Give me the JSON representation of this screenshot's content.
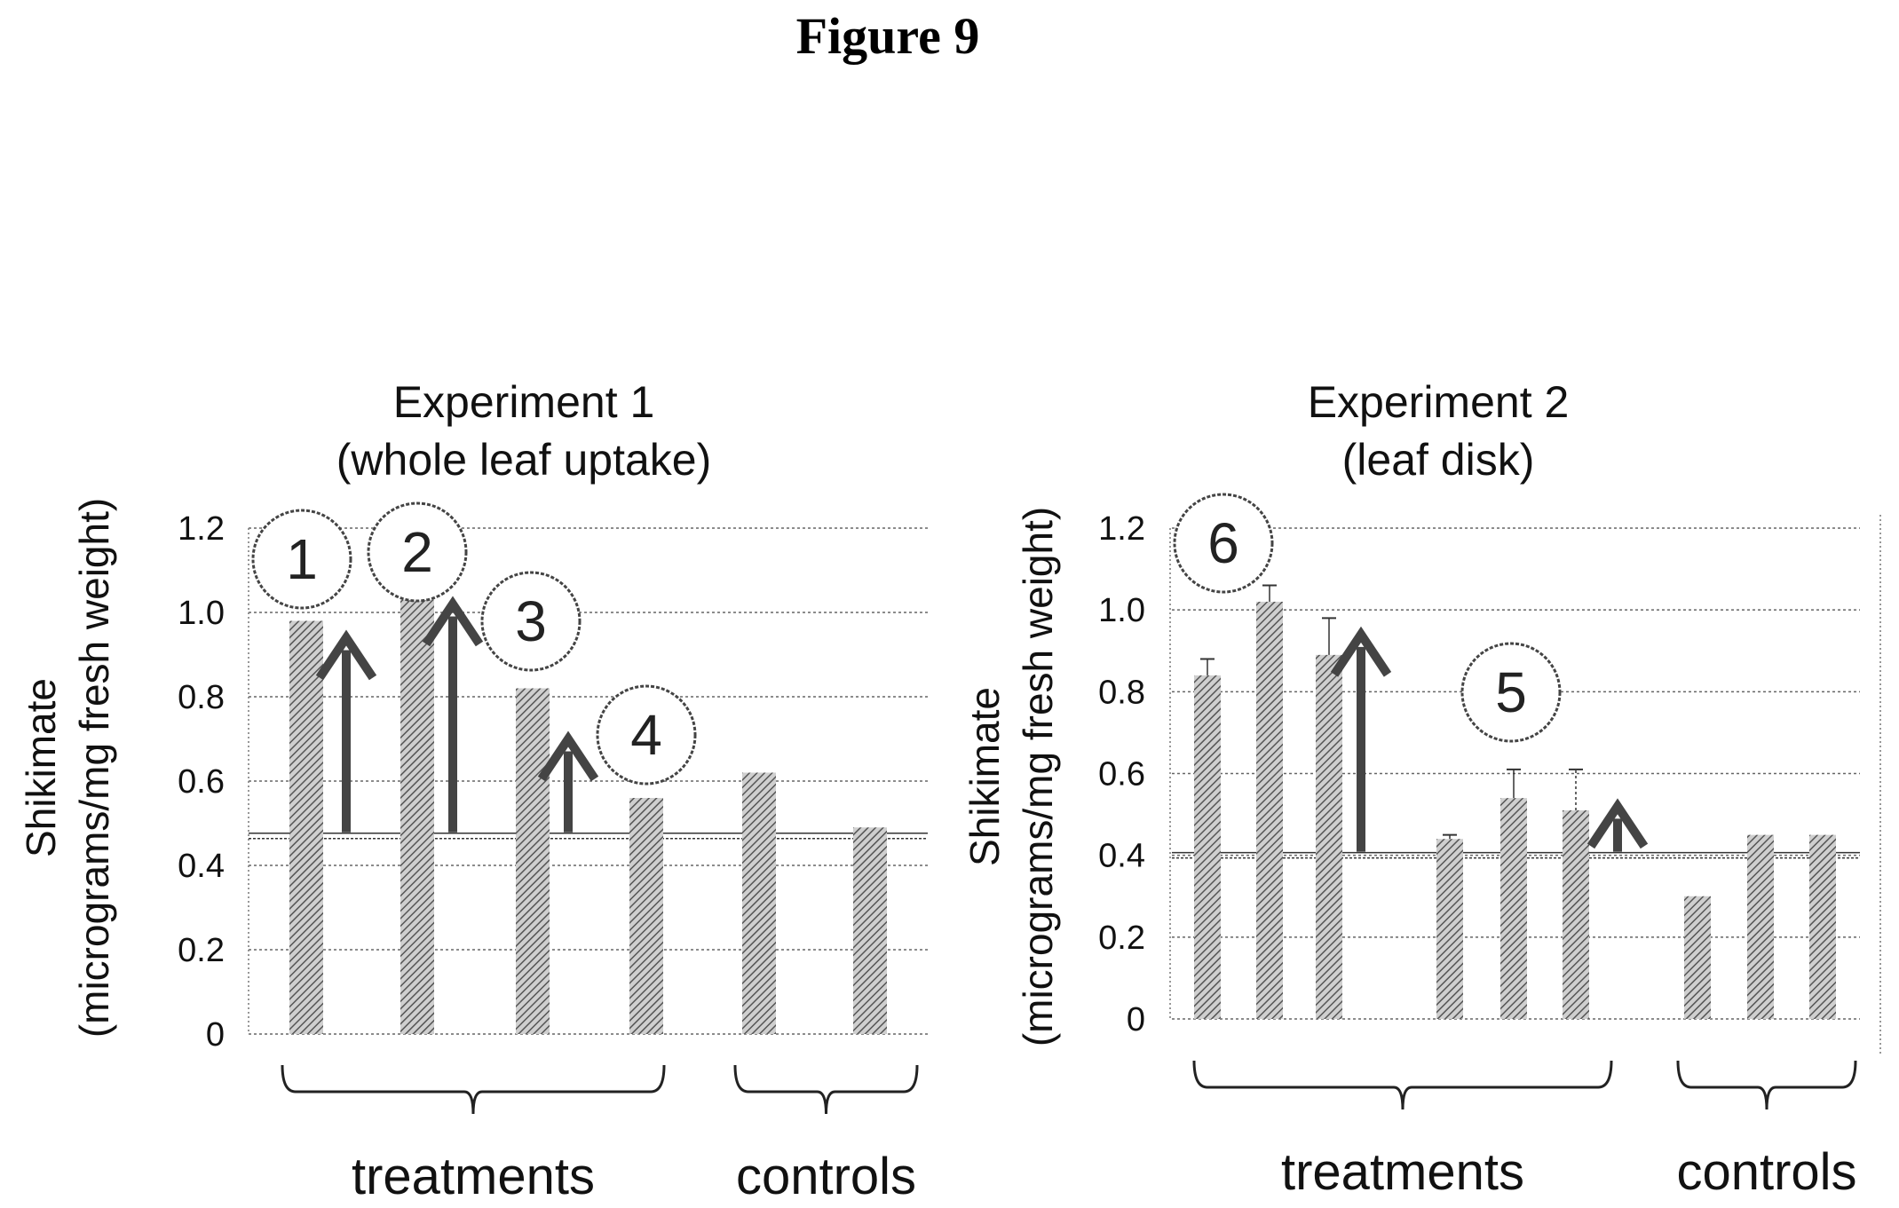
{
  "figure_title": "Figure 9",
  "chart_data": [
    {
      "type": "bar",
      "title": "Experiment 1",
      "subtitle": "(whole leaf uptake)",
      "ylabel": "Shikimate",
      "ylabel2": "(micrograms/mg fresh weight)",
      "xlabel": "",
      "ylim": [
        0,
        1.2
      ],
      "yticks": [
        "0",
        "0.2",
        "0.4",
        "0.6",
        "0.8",
        "1.0",
        "1.2"
      ],
      "grid": true,
      "categories": [
        "",
        "",
        "",
        "",
        "",
        ""
      ],
      "values": [
        0.98,
        1.03,
        0.82,
        0.56,
        0.62,
        0.49
      ],
      "error_bars": [],
      "groups": [
        {
          "label": "treatments",
          "from": 0,
          "to": 3
        },
        {
          "label": "controls",
          "from": 4,
          "to": 5
        }
      ],
      "baseline": 0.47,
      "annotations": [
        {
          "number": "1",
          "bar": 0,
          "arrow_top": 0.94
        },
        {
          "number": "2",
          "bar": 1,
          "arrow_top": 1.02
        },
        {
          "number": "3",
          "bar": 2,
          "arrow_top": 0.7
        },
        {
          "number": "4",
          "bar": 3,
          "arrow_top": null
        }
      ]
    },
    {
      "type": "bar",
      "title": "Experiment 2",
      "subtitle": "(leaf disk)",
      "ylabel": "Shikimate",
      "ylabel2": "(micrograms/mg fresh weight)",
      "xlabel": "",
      "ylim": [
        0,
        1.2
      ],
      "yticks": [
        "0",
        "0.2",
        "0.4",
        "0.6",
        "0.8",
        "1.0",
        "1.2"
      ],
      "grid": true,
      "categories": [
        "",
        "",
        "",
        "",
        "",
        "",
        "",
        "",
        ""
      ],
      "values": [
        0.84,
        1.02,
        0.89,
        0.44,
        0.54,
        0.51,
        0.3,
        0.45,
        0.45
      ],
      "error_bars": [
        0.04,
        0.04,
        0.09,
        0.01,
        0.07,
        0.1,
        0,
        0,
        0
      ],
      "groups": [
        {
          "label": "treatments",
          "from": 0,
          "to": 5
        },
        {
          "label": "controls",
          "from": 6,
          "to": 8
        }
      ],
      "baseline": 0.4,
      "annotations": [
        {
          "number": "6",
          "bar": 0,
          "arrow_top": null
        },
        {
          "number": "5",
          "bar": 4,
          "arrow_top": null
        }
      ],
      "arrows": [
        {
          "bar": 2,
          "top": 0.94
        },
        {
          "bar": 5,
          "top": 0.52
        }
      ]
    }
  ]
}
